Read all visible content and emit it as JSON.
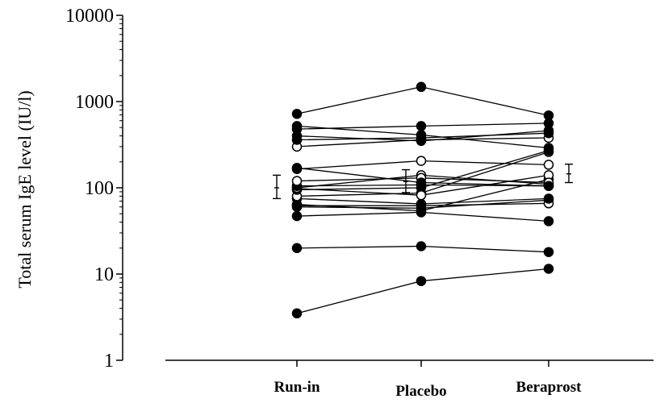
{
  "chart_data": {
    "type": "line",
    "title": "",
    "xlabel": "",
    "ylabel": "Total serum IgE level (IU/l)",
    "yscale": "log",
    "ylim": [
      1,
      10000
    ],
    "yticks": [
      "1",
      "10",
      "100",
      "1000",
      "10000"
    ],
    "categories": [
      "Run-in",
      "Placebo",
      "Beraprost"
    ],
    "grid": false,
    "legend": "none",
    "series": [
      {
        "values": [
          3.5,
          8.3,
          11.5
        ],
        "marker": "filled"
      },
      {
        "values": [
          20,
          21,
          18
        ],
        "marker": "filled"
      },
      {
        "values": [
          47,
          52,
          41
        ],
        "marker": "filled"
      },
      {
        "values": [
          60,
          58,
          72
        ],
        "marker": "filled"
      },
      {
        "values": [
          62,
          62,
          66
        ],
        "marker": "open"
      },
      {
        "values": [
          64,
          54,
          125
        ],
        "marker": "filled"
      },
      {
        "values": [
          75,
          65,
          75
        ],
        "marker": "filled"
      },
      {
        "values": [
          80,
          87,
          260
        ],
        "marker": "open"
      },
      {
        "values": [
          95,
          100,
          270
        ],
        "marker": "filled"
      },
      {
        "values": [
          98,
          82,
          140
        ],
        "marker": "open"
      },
      {
        "values": [
          100,
          140,
          110
        ],
        "marker": "open"
      },
      {
        "values": [
          105,
          108,
          105
        ],
        "marker": "filled"
      },
      {
        "values": [
          120,
          130,
          115
        ],
        "marker": "open"
      },
      {
        "values": [
          165,
          205,
          185
        ],
        "marker": "open"
      },
      {
        "values": [
          170,
          115,
          105
        ],
        "marker": "filled"
      },
      {
        "values": [
          300,
          360,
          380
        ],
        "marker": "open"
      },
      {
        "values": [
          360,
          380,
          430
        ],
        "marker": "filled"
      },
      {
        "values": [
          400,
          350,
          460
        ],
        "marker": "filled"
      },
      {
        "values": [
          480,
          520,
          560
        ],
        "marker": "filled"
      },
      {
        "values": [
          520,
          410,
          290
        ],
        "marker": "filled"
      },
      {
        "values": [
          720,
          1480,
          690
        ],
        "marker": "filled"
      }
    ],
    "error_bars": [
      {
        "category": "Run-in",
        "center": 100,
        "low": 75,
        "high": 140
      },
      {
        "category": "Placebo",
        "center": 118,
        "low": 88,
        "high": 162
      },
      {
        "category": "Beraprost",
        "center": 145,
        "low": 115,
        "high": 188
      }
    ]
  }
}
